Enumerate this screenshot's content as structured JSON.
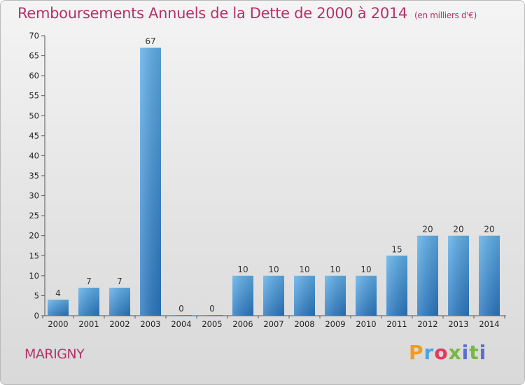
{
  "chart_data": {
    "type": "bar",
    "title": "Remboursements Annuels de la Dette de 2000 à 2014",
    "subtitle": "(en milliers d'€)",
    "xlabel": "",
    "ylabel": "",
    "categories": [
      "2000",
      "2001",
      "2002",
      "2003",
      "2004",
      "2005",
      "2006",
      "2007",
      "2008",
      "2009",
      "2010",
      "2011",
      "2012",
      "2013",
      "2014"
    ],
    "values": [
      4,
      7,
      7,
      67,
      0,
      0,
      10,
      10,
      10,
      10,
      10,
      15,
      20,
      20,
      20
    ],
    "ylim": [
      0,
      70
    ],
    "yticks": [
      0,
      5,
      10,
      15,
      20,
      25,
      30,
      35,
      40,
      45,
      50,
      55,
      60,
      65,
      70
    ],
    "grid": false,
    "legend": "none",
    "bar_color": "#3d8fd6"
  },
  "place_label": "MARIGNY",
  "logo": {
    "text": "Proxiti"
  }
}
